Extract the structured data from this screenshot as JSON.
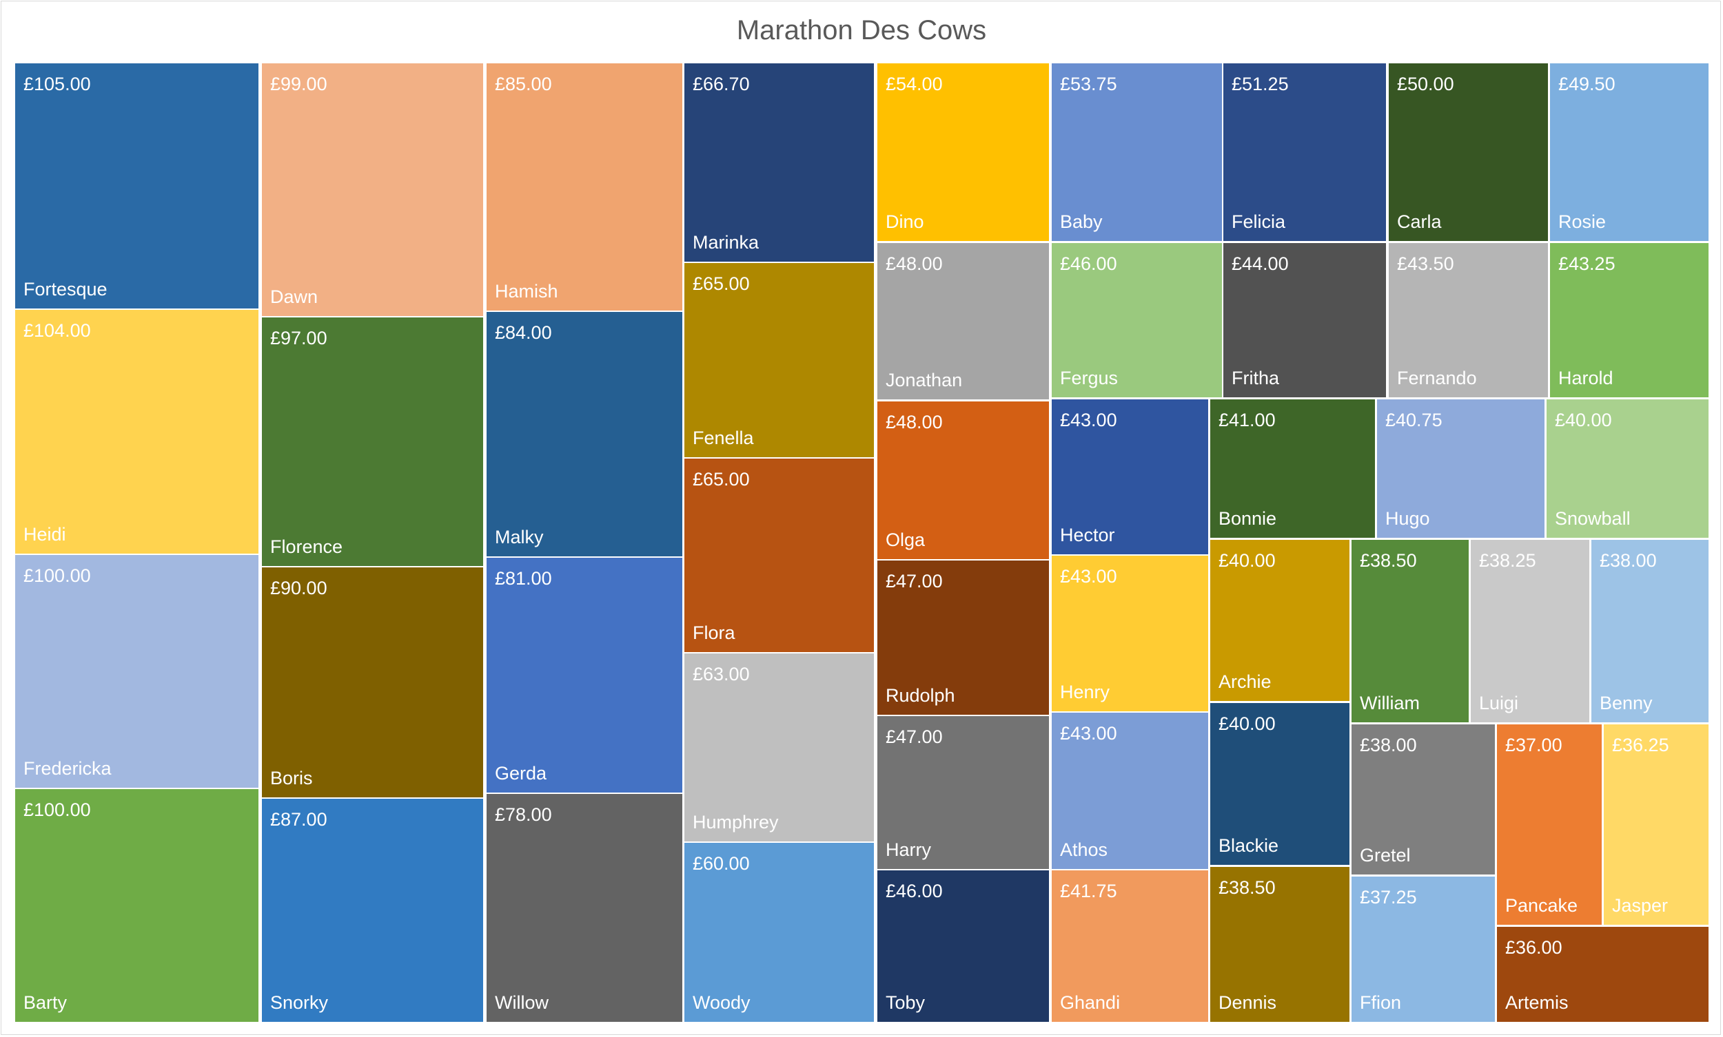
{
  "chart_data": {
    "type": "treemap",
    "title": "Marathon Des Cows",
    "items": [
      {
        "name": "Fortesque",
        "label": "£105.00",
        "value": 105.0,
        "color": "#2a6aa6"
      },
      {
        "name": "Heidi",
        "label": "£104.00",
        "value": 104.0,
        "color": "#ffd34f"
      },
      {
        "name": "Fredericka",
        "label": "£100.00",
        "value": 100.0,
        "color": "#a2b8e0"
      },
      {
        "name": "Barty",
        "label": "£100.00",
        "value": 100.0,
        "color": "#6fac46"
      },
      {
        "name": "Dawn",
        "label": "£99.00",
        "value": 99.0,
        "color": "#f2b085"
      },
      {
        "name": "Florence",
        "label": "£97.00",
        "value": 97.0,
        "color": "#4c7a33"
      },
      {
        "name": "Boris",
        "label": "£90.00",
        "value": 90.0,
        "color": "#7f6000"
      },
      {
        "name": "Snorky",
        "label": "£87.00",
        "value": 87.0,
        "color": "#317bc2"
      },
      {
        "name": "Hamish",
        "label": "£85.00",
        "value": 85.0,
        "color": "#f0a46f"
      },
      {
        "name": "Malky",
        "label": "£84.00",
        "value": 84.0,
        "color": "#255f92"
      },
      {
        "name": "Gerda",
        "label": "£81.00",
        "value": 81.0,
        "color": "#4472c4"
      },
      {
        "name": "Willow",
        "label": "£78.00",
        "value": 78.0,
        "color": "#636363"
      },
      {
        "name": "Marinka",
        "label": "£66.70",
        "value": 66.7,
        "color": "#264478"
      },
      {
        "name": "Fenella",
        "label": "£65.00",
        "value": 65.0,
        "color": "#ae8800"
      },
      {
        "name": "Flora",
        "label": "£65.00",
        "value": 65.0,
        "color": "#b75312"
      },
      {
        "name": "Humphrey",
        "label": "£63.00",
        "value": 63.0,
        "color": "#bfbfbf"
      },
      {
        "name": "Woody",
        "label": "£60.00",
        "value": 60.0,
        "color": "#5b9bd5"
      },
      {
        "name": "Dino",
        "label": "£54.00",
        "value": 54.0,
        "color": "#ffc000"
      },
      {
        "name": "Baby",
        "label": "£53.75",
        "value": 53.75,
        "color": "#698ed0"
      },
      {
        "name": "Felicia",
        "label": "£51.25",
        "value": 51.25,
        "color": "#2c4c89"
      },
      {
        "name": "Carla",
        "label": "£50.00",
        "value": 50.0,
        "color": "#375623"
      },
      {
        "name": "Rosie",
        "label": "£49.50",
        "value": 49.5,
        "color": "#7dafdf"
      },
      {
        "name": "Jonathan",
        "label": "£48.00",
        "value": 48.0,
        "color": "#a5a5a5"
      },
      {
        "name": "Fergus",
        "label": "£46.00",
        "value": 46.0,
        "color": "#9ac97e"
      },
      {
        "name": "Fritha",
        "label": "£44.00",
        "value": 44.0,
        "color": "#525252"
      },
      {
        "name": "Fernando",
        "label": "£43.50",
        "value": 43.5,
        "color": "#b5b5b5"
      },
      {
        "name": "Harold",
        "label": "£43.25",
        "value": 43.25,
        "color": "#7fbc5a"
      },
      {
        "name": "Olga",
        "label": "£48.00",
        "value": 48.0,
        "color": "#d35f14"
      },
      {
        "name": "Rudolph",
        "label": "£47.00",
        "value": 47.0,
        "color": "#843c0c"
      },
      {
        "name": "Harry",
        "label": "£47.00",
        "value": 47.0,
        "color": "#737373"
      },
      {
        "name": "Toby",
        "label": "£46.00",
        "value": 46.0,
        "color": "#1f3864"
      },
      {
        "name": "Hector",
        "label": "£43.00",
        "value": 43.0,
        "color": "#2f55a0"
      },
      {
        "name": "Henry",
        "label": "£43.00",
        "value": 43.0,
        "color": "#ffcc33"
      },
      {
        "name": "Athos",
        "label": "£43.00",
        "value": 43.0,
        "color": "#7c9dd6"
      },
      {
        "name": "Ghandi",
        "label": "£41.75",
        "value": 41.75,
        "color": "#f19a5d"
      },
      {
        "name": "Bonnie",
        "label": "£41.00",
        "value": 41.0,
        "color": "#3e6628"
      },
      {
        "name": "Hugo",
        "label": "£40.75",
        "value": 40.75,
        "color": "#8eaadb"
      },
      {
        "name": "Snowball",
        "label": "£40.00",
        "value": 40.0,
        "color": "#a9d18e"
      },
      {
        "name": "Archie",
        "label": "£40.00",
        "value": 40.0,
        "color": "#c99a00"
      },
      {
        "name": "Blackie",
        "label": "£40.00",
        "value": 40.0,
        "color": "#1f4e79"
      },
      {
        "name": "Dennis",
        "label": "£38.50",
        "value": 38.5,
        "color": "#977300"
      },
      {
        "name": "William",
        "label": "£38.50",
        "value": 38.5,
        "color": "#568b3a"
      },
      {
        "name": "Luigi",
        "label": "£38.25",
        "value": 38.25,
        "color": "#c9c9c9"
      },
      {
        "name": "Benny",
        "label": "£38.00",
        "value": 38.0,
        "color": "#9dc3e6"
      },
      {
        "name": "Gretel",
        "label": "£38.00",
        "value": 38.0,
        "color": "#7f7f7f"
      },
      {
        "name": "Ffion",
        "label": "£37.25",
        "value": 37.25,
        "color": "#8cb8e3"
      },
      {
        "name": "Pancake",
        "label": "£37.00",
        "value": 37.0,
        "color": "#ed7d31"
      },
      {
        "name": "Jasper",
        "label": "£36.25",
        "value": 36.25,
        "color": "#ffd966"
      },
      {
        "name": "Artemis",
        "label": "£36.00",
        "value": 36.0,
        "color": "#9e480e"
      }
    ]
  }
}
